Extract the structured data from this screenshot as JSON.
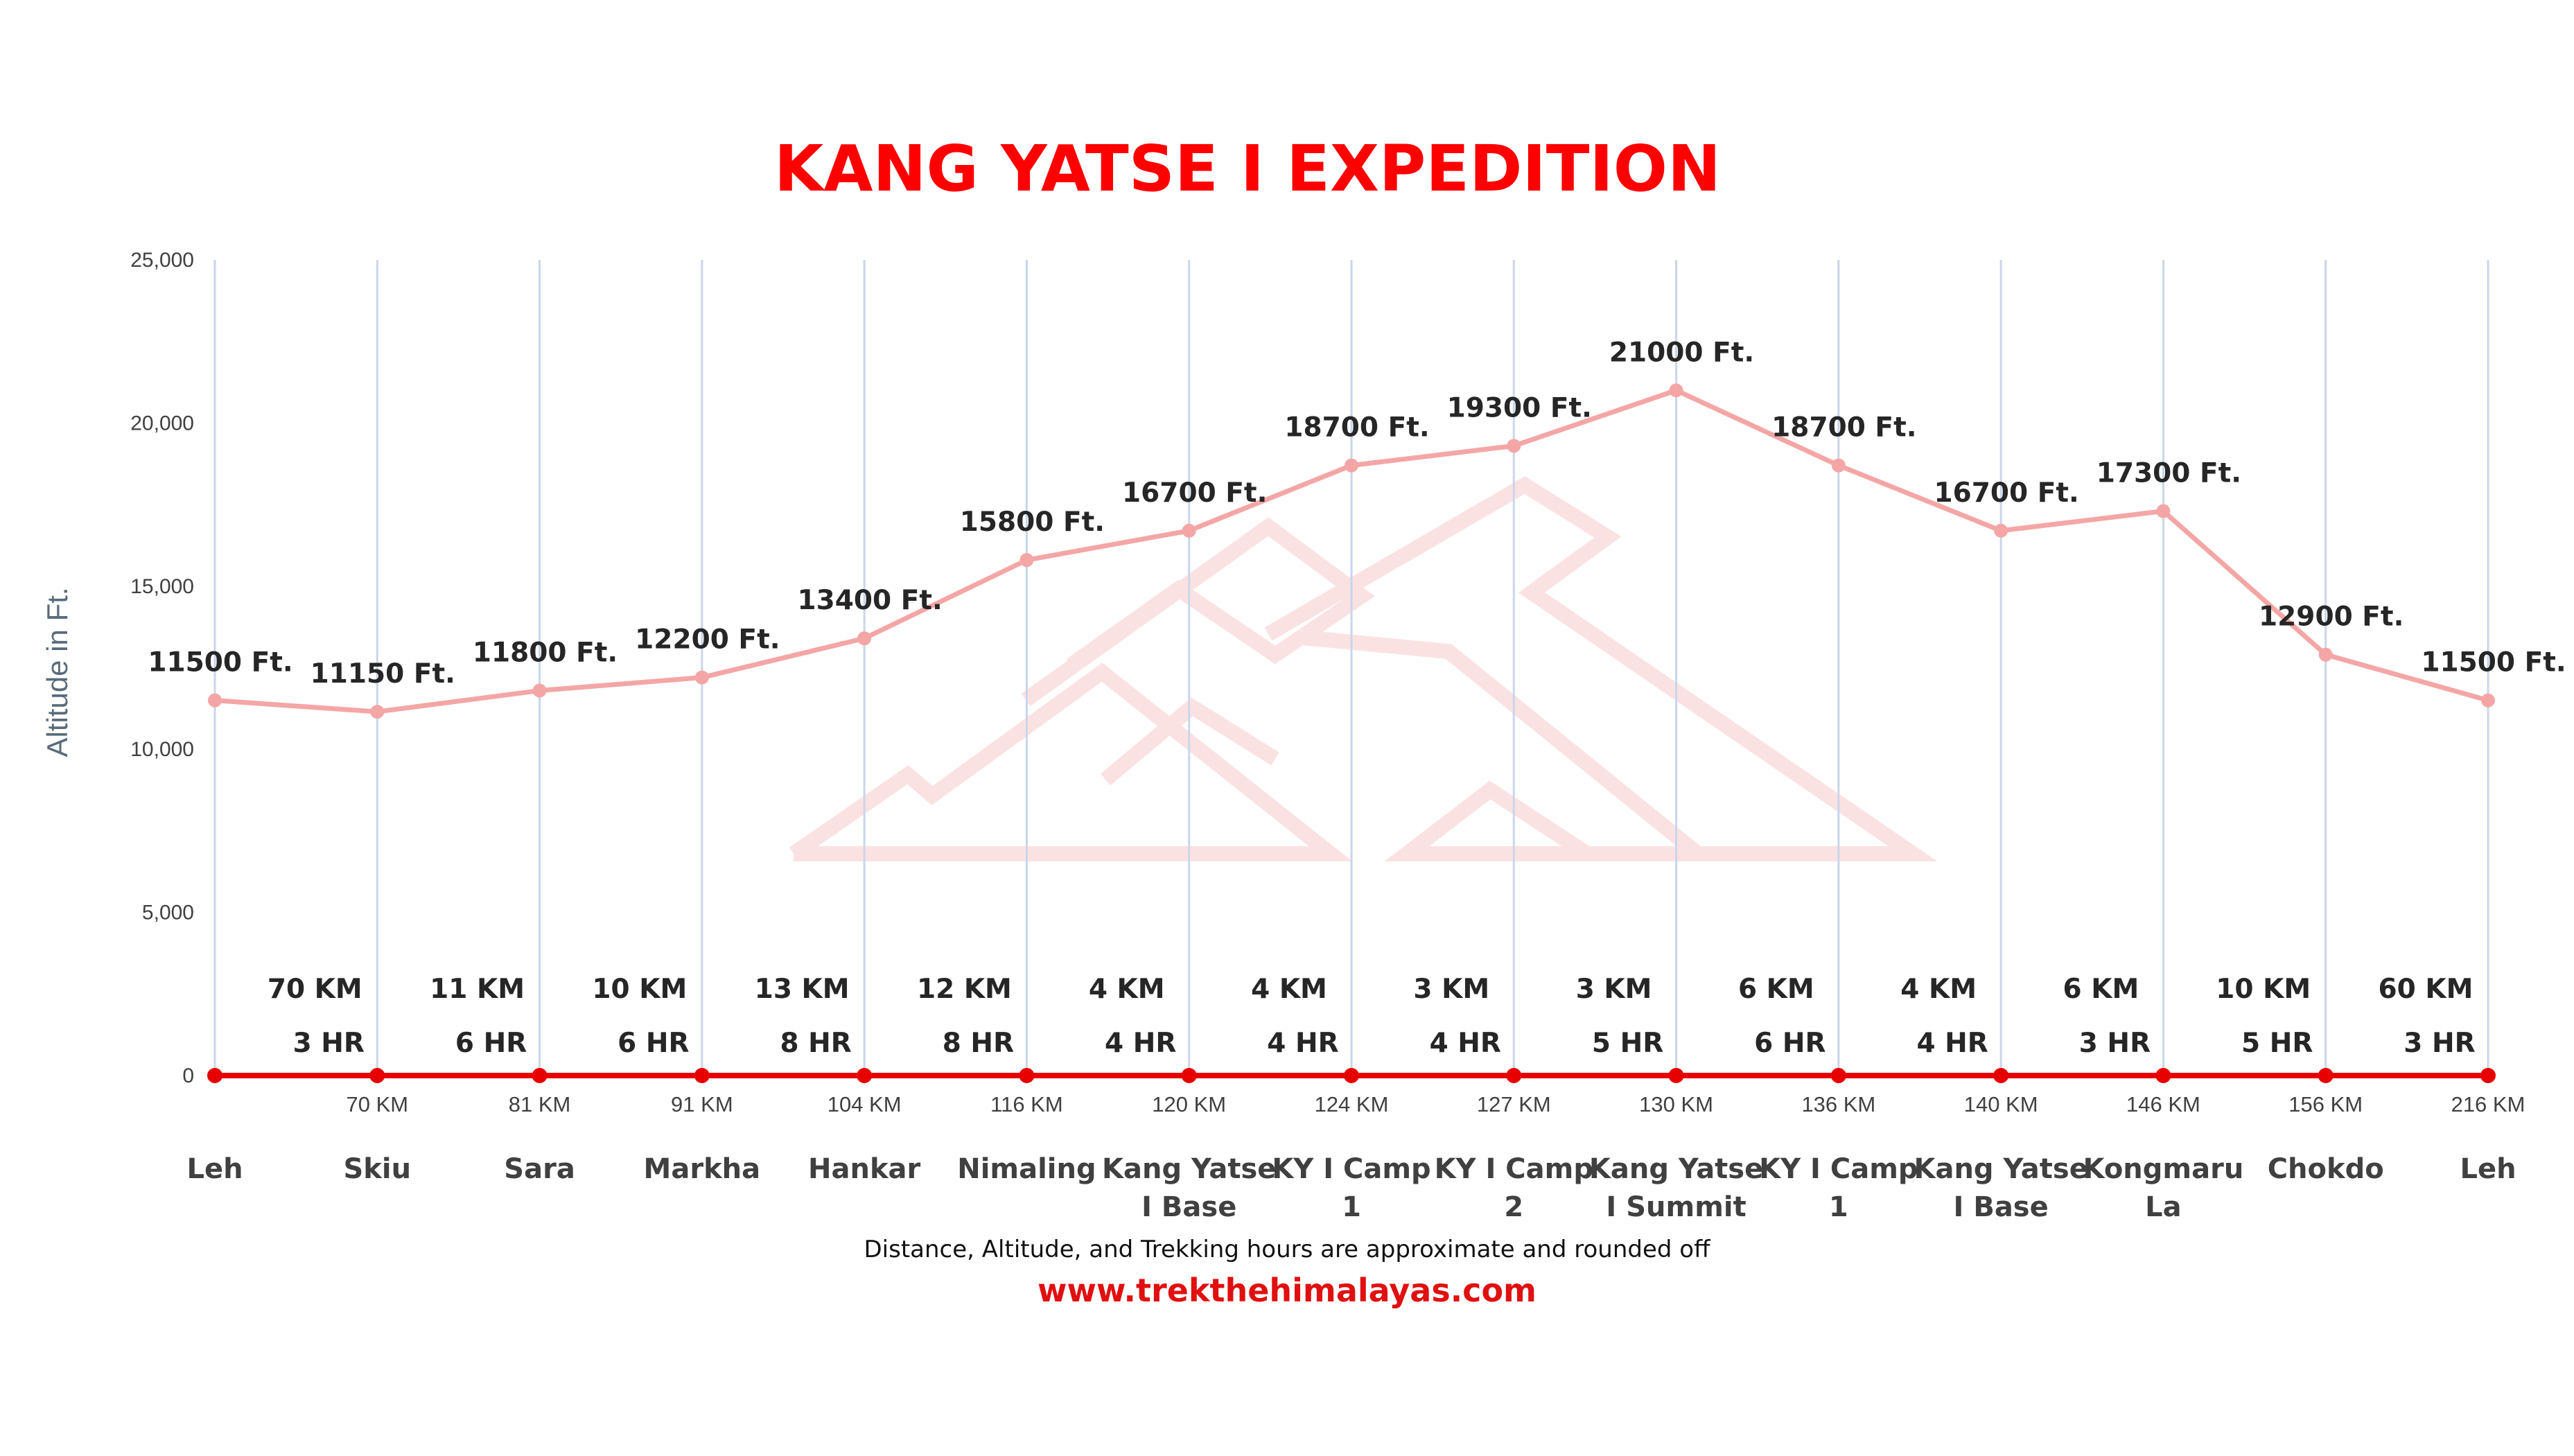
{
  "chart_data": {
    "type": "line",
    "title": "KANG YATSE I EXPEDITION",
    "ylabel": "Altitude in Ft.",
    "ylim": [
      0,
      25000
    ],
    "yticks": [
      "0",
      "5,000",
      "10,000",
      "15,000",
      "20,000",
      "25,000"
    ],
    "grid": "vertical",
    "places": [
      "Leh",
      "Skiu",
      "Sara",
      "Markha",
      "Hankar",
      "Nimaling",
      "Kang Yatse I Base",
      "KY I Camp 1",
      "KY I Camp 2",
      "Kang Yatse I Summit",
      "KY I Camp 1",
      "Kang Yatse I Base",
      "Kongmaru La",
      "Chokdo",
      "Leh"
    ],
    "place_lines": [
      [
        "Leh"
      ],
      [
        "Skiu"
      ],
      [
        "Sara"
      ],
      [
        "Markha"
      ],
      [
        "Hankar"
      ],
      [
        "Nimaling"
      ],
      [
        "Kang Yatse",
        "I Base"
      ],
      [
        "KY I Camp",
        "1"
      ],
      [
        "KY I Camp",
        "2"
      ],
      [
        "Kang Yatse",
        "I Summit"
      ],
      [
        "KY I Camp",
        "1"
      ],
      [
        "Kang Yatse",
        "I Base"
      ],
      [
        "Kongmaru",
        "La"
      ],
      [
        "Chokdo"
      ],
      [
        "Leh"
      ]
    ],
    "km_labels": [
      "",
      "70 KM",
      "81 KM",
      "91 KM",
      "104 KM",
      "116 KM",
      "120 KM",
      "124 KM",
      "127 KM",
      "130 KM",
      "136 KM",
      "140 KM",
      "146 KM",
      "156 KM",
      "216 KM"
    ],
    "series": [
      {
        "values": [
          11500,
          11150,
          11800,
          12200,
          13400,
          15800,
          16700,
          18700,
          19300,
          21000,
          18700,
          16700,
          17300,
          12900,
          11500
        ],
        "labels": [
          "11500 Ft.",
          "11150 Ft.",
          "11800 Ft.",
          "12200 Ft.",
          "13400 Ft.",
          "15800 Ft.",
          "16700 Ft.",
          "18700 Ft.",
          "19300 Ft.",
          "21000 Ft.",
          "18700 Ft.",
          "16700 Ft.",
          "17300 Ft.",
          "12900 Ft.",
          "11500 Ft."
        ],
        "color": "#f4a6a6"
      },
      {
        "values": [
          0,
          0,
          0,
          0,
          0,
          0,
          0,
          0,
          0,
          0,
          0,
          0,
          0,
          0,
          0
        ],
        "color": "#e60000"
      }
    ],
    "segments": [
      {
        "distance": "70 KM",
        "hours": "3 HR"
      },
      {
        "distance": "11 KM",
        "hours": "6 HR"
      },
      {
        "distance": "10 KM",
        "hours": "6 HR"
      },
      {
        "distance": "13 KM",
        "hours": "8 HR"
      },
      {
        "distance": "12 KM",
        "hours": "8 HR"
      },
      {
        "distance": "4 KM",
        "hours": "4 HR"
      },
      {
        "distance": "4 KM",
        "hours": "4 HR"
      },
      {
        "distance": "3 KM",
        "hours": "4 HR"
      },
      {
        "distance": "3 KM",
        "hours": "5 HR"
      },
      {
        "distance": "6 KM",
        "hours": "6 HR"
      },
      {
        "distance": "4 KM",
        "hours": "4 HR"
      },
      {
        "distance": "6 KM",
        "hours": "3 HR"
      },
      {
        "distance": "10 KM",
        "hours": "5 HR"
      },
      {
        "distance": "60 KM",
        "hours": "3 HR"
      }
    ],
    "note": "Distance, Altitude, and Trekking hours are approximate and rounded off",
    "website": "www.trekthehimalayas.com"
  },
  "watermark_icon": "mountain-logo-icon"
}
